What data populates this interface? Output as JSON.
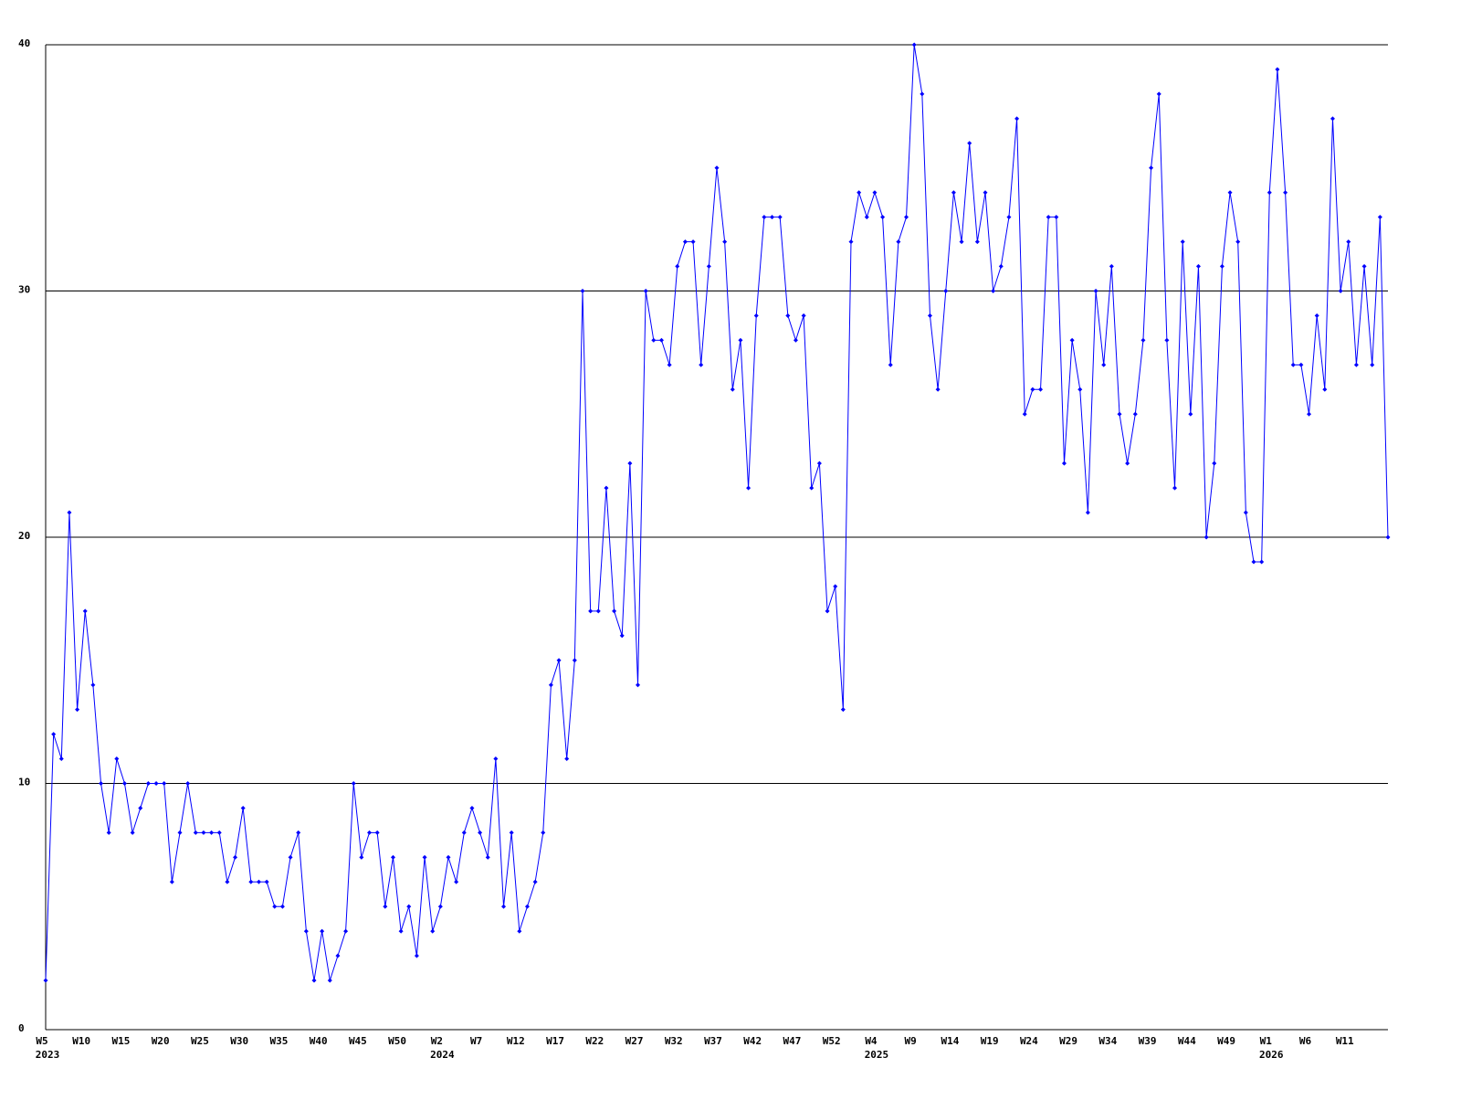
{
  "chart_data": {
    "type": "line",
    "color": "#0000ff",
    "grid": true,
    "ylim": [
      0,
      40
    ],
    "yticks": [
      0,
      10,
      20,
      30,
      40
    ],
    "categories": [
      "W5",
      null,
      null,
      null,
      null,
      "W10",
      null,
      null,
      null,
      null,
      "W15",
      null,
      null,
      null,
      null,
      "W20",
      null,
      null,
      null,
      null,
      "W25",
      null,
      null,
      null,
      null,
      "W30",
      null,
      null,
      null,
      null,
      "W35",
      null,
      null,
      null,
      null,
      "W40",
      null,
      null,
      null,
      null,
      "W45",
      null,
      null,
      null,
      null,
      "W50",
      null,
      null,
      null,
      null,
      "W2",
      null,
      null,
      null,
      null,
      "W7",
      null,
      null,
      null,
      null,
      "W12",
      null,
      null,
      null,
      null,
      "W17",
      null,
      null,
      null,
      null,
      "W22",
      null,
      null,
      null,
      null,
      "W27",
      null,
      null,
      null,
      null,
      "W32",
      null,
      null,
      null,
      null,
      "W37",
      null,
      null,
      null,
      null,
      "W42",
      null,
      null,
      null,
      null,
      "W47",
      null,
      null,
      null,
      null,
      "W52",
      null,
      null,
      null,
      null,
      "W4",
      null,
      null,
      null,
      null,
      "W9",
      null,
      null,
      null,
      null,
      "W14",
      null,
      null,
      null,
      null,
      "W19",
      null,
      null,
      null,
      null,
      "W24",
      null,
      null,
      null,
      null,
      "W29",
      null,
      null,
      null,
      null,
      "W34",
      null,
      null,
      null,
      null,
      "W39",
      null,
      null,
      null,
      null,
      "W44",
      null,
      null,
      null,
      null,
      "W49",
      null,
      null,
      null,
      null,
      "W1",
      null,
      null,
      null,
      null,
      "W6",
      null,
      null,
      null,
      null,
      "W11",
      null,
      null,
      null,
      null,
      null
    ],
    "years": [
      "2023",
      null,
      null,
      null,
      null,
      null,
      null,
      null,
      null,
      null,
      null,
      null,
      null,
      null,
      null,
      null,
      null,
      null,
      null,
      null,
      null,
      null,
      null,
      null,
      null,
      null,
      null,
      null,
      null,
      null,
      null,
      null,
      null,
      null,
      null,
      null,
      null,
      null,
      null,
      null,
      null,
      null,
      null,
      null,
      null,
      null,
      null,
      null,
      null,
      null,
      "2024",
      null,
      null,
      null,
      null,
      null,
      null,
      null,
      null,
      null,
      null,
      null,
      null,
      null,
      null,
      null,
      null,
      null,
      null,
      null,
      null,
      null,
      null,
      null,
      null,
      null,
      null,
      null,
      null,
      null,
      null,
      null,
      null,
      null,
      null,
      null,
      null,
      null,
      null,
      null,
      null,
      null,
      null,
      null,
      null,
      null,
      null,
      null,
      null,
      null,
      null,
      null,
      null,
      null,
      null,
      "2025",
      null,
      null,
      null,
      null,
      null,
      null,
      null,
      null,
      null,
      null,
      null,
      null,
      null,
      null,
      null,
      null,
      null,
      null,
      null,
      null,
      null,
      null,
      null,
      null,
      null,
      null,
      null,
      null,
      null,
      null,
      null,
      null,
      null,
      null,
      null,
      null,
      null,
      null,
      null,
      null,
      null,
      null,
      null,
      null,
      null,
      null,
      null,
      null,
      null,
      "2026",
      null,
      null,
      null,
      null,
      null,
      null,
      null,
      null,
      null,
      null,
      null,
      null,
      null,
      null,
      null
    ],
    "values": [
      2,
      12,
      11,
      21,
      13,
      17,
      14,
      10,
      8,
      11,
      10,
      8,
      9,
      10,
      10,
      10,
      6,
      8,
      10,
      8,
      8,
      8,
      8,
      6,
      7,
      9,
      6,
      6,
      6,
      5,
      5,
      7,
      8,
      4,
      2,
      4,
      2,
      3,
      4,
      10,
      7,
      8,
      8,
      5,
      7,
      4,
      5,
      3,
      7,
      4,
      5,
      7,
      6,
      8,
      9,
      8,
      7,
      11,
      5,
      8,
      4,
      5,
      6,
      8,
      14,
      15,
      11,
      15,
      30,
      17,
      17,
      22,
      17,
      16,
      23,
      14,
      30,
      28,
      28,
      27,
      31,
      32,
      32,
      27,
      31,
      35,
      32,
      26,
      28,
      22,
      29,
      33,
      33,
      33,
      29,
      28,
      29,
      22,
      23,
      17,
      18,
      13,
      32,
      34,
      33,
      34,
      33,
      27,
      32,
      33,
      40,
      38,
      29,
      26,
      30,
      34,
      32,
      36,
      32,
      34,
      30,
      31,
      33,
      37,
      25,
      26,
      26,
      33,
      33,
      23,
      28,
      26,
      21,
      30,
      27,
      31,
      25,
      23,
      25,
      28,
      35,
      38,
      28,
      22,
      32,
      25,
      31,
      20,
      23,
      31,
      34,
      32,
      21,
      19,
      19,
      34,
      39,
      34,
      27,
      27,
      25,
      29,
      26,
      37,
      30,
      32,
      27,
      31,
      27,
      33,
      20
    ]
  }
}
